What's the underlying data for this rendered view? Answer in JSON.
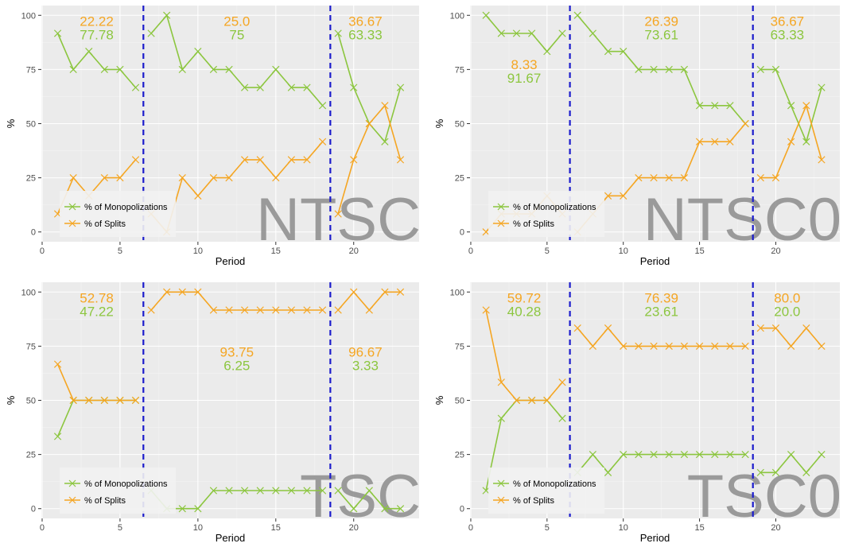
{
  "colors": {
    "monopolizations": "#8cc63f",
    "splits": "#f5a623",
    "divider": "#1c1ccc"
  },
  "chart_data": [
    {
      "type": "line",
      "watermark": "NTSC",
      "xlabel": "Period",
      "ylabel": "%",
      "xlim": [
        0,
        23
      ],
      "ylim": [
        0,
        100
      ],
      "xticks": [
        0,
        5,
        10,
        15,
        20
      ],
      "yticks": [
        0,
        25,
        50,
        75,
        100
      ],
      "grid": true,
      "legend_position": "bottom-left",
      "vlines": [
        6.5,
        18.5
      ],
      "x": [
        1,
        2,
        3,
        4,
        5,
        6,
        7,
        8,
        9,
        10,
        11,
        12,
        13,
        14,
        15,
        16,
        17,
        18,
        19,
        20,
        21,
        22,
        23
      ],
      "series": [
        {
          "name": "% of Monopolizations",
          "color_key": "monopolizations",
          "values": [
            91.67,
            75,
            83.33,
            75,
            75,
            66.67,
            91.67,
            100,
            75,
            83.33,
            75,
            75,
            66.67,
            66.67,
            75,
            66.67,
            66.67,
            58.33,
            91.67,
            66.67,
            50,
            41.67,
            66.67
          ]
        },
        {
          "name": "% of Splits",
          "color_key": "splits",
          "values": [
            8.33,
            25,
            16.67,
            25,
            25,
            33.33,
            8.33,
            0,
            25,
            16.67,
            25,
            25,
            33.33,
            33.33,
            25,
            33.33,
            33.33,
            41.67,
            8.33,
            33.33,
            50,
            58.33,
            33.33
          ]
        }
      ],
      "annotations": [
        {
          "splits": "22.22",
          "monopolizations": "77.78",
          "x": 3.5,
          "y": 97
        },
        {
          "splits": "25.0",
          "monopolizations": "75",
          "x": 12.5,
          "y": 97
        },
        {
          "splits": "36.67",
          "monopolizations": "63.33",
          "x": 20.75,
          "y": 97
        }
      ]
    },
    {
      "type": "line",
      "watermark": "NTSC0",
      "xlabel": "Period",
      "ylabel": "%",
      "xlim": [
        0,
        23
      ],
      "ylim": [
        0,
        100
      ],
      "xticks": [
        0,
        5,
        10,
        15,
        20
      ],
      "yticks": [
        0,
        25,
        50,
        75,
        100
      ],
      "grid": true,
      "legend_position": "bottom-left",
      "vlines": [
        6.5,
        18.5
      ],
      "x": [
        1,
        2,
        3,
        4,
        5,
        6,
        7,
        8,
        9,
        10,
        11,
        12,
        13,
        14,
        15,
        16,
        17,
        18,
        19,
        20,
        21,
        22,
        23
      ],
      "series": [
        {
          "name": "% of Monopolizations",
          "color_key": "monopolizations",
          "values": [
            100,
            91.67,
            91.67,
            91.67,
            83.33,
            91.67,
            100,
            91.67,
            83.33,
            83.33,
            75,
            75,
            75,
            75,
            58.33,
            58.33,
            58.33,
            50,
            75,
            75,
            58.33,
            41.67,
            66.67
          ]
        },
        {
          "name": "% of Splits",
          "color_key": "splits",
          "values": [
            0,
            8.33,
            8.33,
            8.33,
            16.67,
            8.33,
            0,
            8.33,
            16.67,
            16.67,
            25,
            25,
            25,
            25,
            41.67,
            41.67,
            41.67,
            50,
            25,
            25,
            41.67,
            58.33,
            33.33
          ]
        }
      ],
      "annotations": [
        {
          "splits": "8.33",
          "monopolizations": "91.67",
          "x": 3.5,
          "y": 77
        },
        {
          "splits": "26.39",
          "monopolizations": "73.61",
          "x": 12.5,
          "y": 97
        },
        {
          "splits": "36.67",
          "monopolizations": "63.33",
          "x": 20.75,
          "y": 97
        }
      ]
    },
    {
      "type": "line",
      "watermark": "TSC",
      "xlabel": "Period",
      "ylabel": "%",
      "xlim": [
        0,
        23
      ],
      "ylim": [
        0,
        100
      ],
      "xticks": [
        0,
        5,
        10,
        15,
        20
      ],
      "yticks": [
        0,
        25,
        50,
        75,
        100
      ],
      "grid": true,
      "legend_position": "bottom-left",
      "vlines": [
        6.5,
        18.5
      ],
      "x": [
        1,
        2,
        3,
        4,
        5,
        6,
        7,
        8,
        9,
        10,
        11,
        12,
        13,
        14,
        15,
        16,
        17,
        18,
        19,
        20,
        21,
        22,
        23
      ],
      "series": [
        {
          "name": "% of Monopolizations",
          "color_key": "monopolizations",
          "values": [
            33.33,
            50,
            50,
            50,
            50,
            50,
            8.33,
            0,
            0,
            0,
            8.33,
            8.33,
            8.33,
            8.33,
            8.33,
            8.33,
            8.33,
            8.33,
            8.33,
            0,
            8.33,
            0,
            0
          ]
        },
        {
          "name": "% of Splits",
          "color_key": "splits",
          "values": [
            66.67,
            50,
            50,
            50,
            50,
            50,
            91.67,
            100,
            100,
            100,
            91.67,
            91.67,
            91.67,
            91.67,
            91.67,
            91.67,
            91.67,
            91.67,
            91.67,
            100,
            91.67,
            100,
            100
          ]
        }
      ],
      "annotations": [
        {
          "splits": "52.78",
          "monopolizations": "47.22",
          "x": 3.5,
          "y": 97
        },
        {
          "splits": "93.75",
          "monopolizations": "6.25",
          "x": 12.5,
          "y": 72
        },
        {
          "splits": "96.67",
          "monopolizations": "3.33",
          "x": 20.75,
          "y": 72
        }
      ]
    },
    {
      "type": "line",
      "watermark": "TSC0",
      "xlabel": "Period",
      "ylabel": "%",
      "xlim": [
        0,
        23
      ],
      "ylim": [
        0,
        100
      ],
      "xticks": [
        0,
        5,
        10,
        15,
        20
      ],
      "yticks": [
        0,
        25,
        50,
        75,
        100
      ],
      "grid": true,
      "legend_position": "bottom-left",
      "vlines": [
        6.5,
        18.5
      ],
      "x": [
        1,
        2,
        3,
        4,
        5,
        6,
        7,
        8,
        9,
        10,
        11,
        12,
        13,
        14,
        15,
        16,
        17,
        18,
        19,
        20,
        21,
        22,
        23
      ],
      "series": [
        {
          "name": "% of Monopolizations",
          "color_key": "monopolizations",
          "values": [
            8.33,
            41.67,
            50,
            50,
            50,
            41.67,
            16.67,
            25,
            16.67,
            25,
            25,
            25,
            25,
            25,
            25,
            25,
            25,
            25,
            16.67,
            16.67,
            25,
            16.67,
            25
          ]
        },
        {
          "name": "% of Splits",
          "color_key": "splits",
          "values": [
            91.67,
            58.33,
            50,
            50,
            50,
            58.33,
            83.33,
            75,
            83.33,
            75,
            75,
            75,
            75,
            75,
            75,
            75,
            75,
            75,
            83.33,
            83.33,
            75,
            83.33,
            75
          ]
        }
      ],
      "annotations": [
        {
          "splits": "59.72",
          "monopolizations": "40.28",
          "x": 3.5,
          "y": 97
        },
        {
          "splits": "76.39",
          "monopolizations": "23.61",
          "x": 12.5,
          "y": 97
        },
        {
          "splits": "80.0",
          "monopolizations": "20.0",
          "x": 20.75,
          "y": 97
        }
      ]
    }
  ]
}
